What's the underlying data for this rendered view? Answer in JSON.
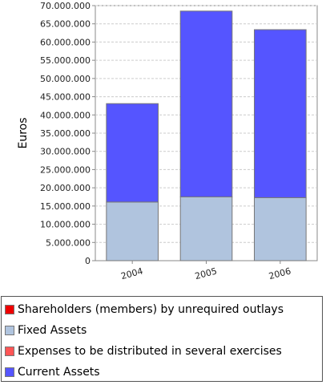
{
  "chart_data": {
    "type": "bar",
    "stacked": true,
    "categories": [
      "2004",
      "2005",
      "2006"
    ],
    "ylabel": "Euros",
    "ylim": [
      0,
      70000000
    ],
    "y_ticks": [
      "0",
      "5.000.000",
      "10.000.000",
      "15.000.000",
      "20.000.000",
      "25.000.000",
      "30.000.000",
      "35.000.000",
      "40.000.000",
      "45.000.000",
      "50.000.000",
      "55.000.000",
      "60.000.000",
      "65.000.000",
      "70.000.000"
    ],
    "y_tick_values": [
      0,
      5000000,
      10000000,
      15000000,
      20000000,
      25000000,
      30000000,
      35000000,
      40000000,
      45000000,
      50000000,
      55000000,
      60000000,
      65000000,
      70000000
    ],
    "grid": true,
    "legend_position": "bottom",
    "series": [
      {
        "name": "Shareholders (members) by unrequired outlays",
        "color": "#ee0000",
        "values": [
          0,
          0,
          0
        ]
      },
      {
        "name": "Fixed Assets",
        "color": "#b0c4de",
        "values": [
          16100000,
          17500000,
          17300000
        ]
      },
      {
        "name": "Expenses to be distributed in several exercises",
        "color": "#ff5555",
        "values": [
          0,
          0,
          0
        ]
      },
      {
        "name": "Current Assets",
        "color": "#5555ff",
        "values": [
          27000000,
          51000000,
          46100000
        ]
      }
    ]
  }
}
